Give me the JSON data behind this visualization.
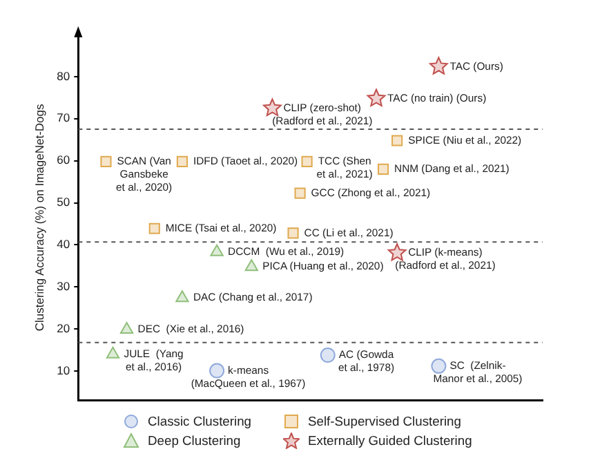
{
  "chart_data": {
    "type": "scatter",
    "ylabel": "Clustering Accuracy (%) on ImageNet-Dogs",
    "categories": [
      null,
      null,
      null,
      null,
      null,
      null,
      null,
      null,
      null,
      null,
      null,
      null,
      null,
      null,
      null,
      null,
      null,
      null,
      null,
      null,
      null,
      null,
      null,
      null,
      null,
      null,
      null,
      null,
      null,
      null,
      null,
      null,
      null,
      null,
      null,
      null,
      null,
      null,
      null,
      null,
      null,
      null,
      null,
      null,
      null,
      null,
      null,
      null,
      null,
      null,
      null,
      null,
      null,
      null,
      null,
      null,
      null,
      null,
      null,
      null,
      null,
      null,
      null,
      null,
      null,
      null,
      null,
      null
    ],
    "ylim": [
      3,
      90
    ],
    "yticks": [
      10,
      20,
      30,
      40,
      50,
      60,
      70,
      80
    ],
    "tick_labels": "y",
    "legend": "bottom",
    "series": [
      {
        "name": "Classic Clustering",
        "color": "#8fa9dc",
        "marker": "circle",
        "values": [
          null,
          null,
          null,
          null,
          null,
          null,
          null,
          null,
          null,
          null,
          null,
          null,
          null,
          null,
          null,
          null,
          null,
          null,
          null,
          null,
          10.1,
          null,
          null,
          null,
          null,
          null,
          null,
          null,
          null,
          null,
          null,
          null,
          null,
          null,
          null,
          null,
          13.8,
          null,
          null,
          null,
          null,
          null,
          null,
          null,
          null,
          null,
          null,
          null,
          null,
          null,
          null,
          null,
          11.2,
          null,
          null,
          null,
          null,
          null,
          null,
          null,
          null,
          null,
          null,
          null,
          null,
          null,
          null,
          null
        ]
      },
      {
        "name": "Self-Supervised Clustering",
        "color": "#e0a94f",
        "marker": "square",
        "values": [
          null,
          null,
          null,
          null,
          59.8,
          null,
          null,
          null,
          null,
          null,
          null,
          43.9,
          null,
          null,
          null,
          59.8,
          null,
          null,
          null,
          null,
          null,
          null,
          null,
          null,
          null,
          null,
          null,
          null,
          null,
          null,
          null,
          42.8,
          52.3,
          59.8,
          null,
          null,
          null,
          null,
          null,
          null,
          null,
          null,
          null,
          null,
          58.0,
          null,
          64.8,
          null,
          null,
          null,
          null,
          null,
          null,
          null,
          null,
          null,
          null,
          null,
          null,
          null,
          null,
          null,
          null,
          null,
          null,
          null,
          null,
          null
        ]
      },
      {
        "name": "Deep Clustering",
        "color": "#8fbf7a",
        "marker": "triangle",
        "values": [
          null,
          null,
          null,
          null,
          null,
          14.0,
          null,
          19.9,
          null,
          null,
          null,
          null,
          null,
          null,
          null,
          27.4,
          null,
          null,
          null,
          null,
          38.3,
          null,
          null,
          null,
          null,
          34.8,
          null,
          null,
          null,
          null,
          null,
          null,
          null,
          null,
          null,
          null,
          null,
          null,
          null,
          null,
          null,
          null,
          null,
          null,
          null,
          null,
          null,
          null,
          null,
          null,
          null,
          null,
          null,
          null,
          null,
          null,
          null,
          null,
          null,
          null,
          null,
          null,
          null,
          null,
          null,
          null,
          null,
          null
        ]
      },
      {
        "name": "Externally Guided Clustering",
        "color": "#c0504d",
        "marker": "star",
        "values": [
          null,
          null,
          null,
          null,
          null,
          null,
          null,
          null,
          null,
          null,
          null,
          null,
          null,
          null,
          null,
          null,
          null,
          null,
          null,
          null,
          null,
          null,
          null,
          null,
          null,
          null,
          null,
          null,
          72.5,
          null,
          null,
          null,
          null,
          null,
          null,
          null,
          null,
          null,
          null,
          null,
          null,
          null,
          null,
          74.8,
          null,
          null,
          38.1,
          null,
          null,
          null,
          null,
          null,
          82.4,
          null,
          null,
          null,
          null,
          null,
          null,
          null,
          null,
          null,
          null,
          null,
          null,
          null,
          null,
          null
        ]
      }
    ],
    "ref_lines": [
      {
        "axis": "y",
        "value": 67.5,
        "color": "#555555",
        "line_style": "dashed"
      },
      {
        "axis": "y",
        "value": 40.7,
        "color": "#555555",
        "line_style": "dashed"
      },
      {
        "axis": "y",
        "value": 16.8,
        "color": "#555555",
        "line_style": "dashed"
      }
    ],
    "annotations": [
      "k-means\n(MacQueen et al., 1967)",
      "AC (Gowda\net al., 1978)",
      "SC  (Zelnik-\nManor et al., 2005)",
      "SCAN (Van\nGansbeke\net al., 2020)",
      "MICE (Tsai et al., 2020)",
      "IDFD (Taoet al., 2020)",
      "CC (Li et al., 2021)",
      "GCC (Zhong et al., 2021)",
      "TCC (Shen\net al., 2021)",
      "NNM (Dang et al., 2021)",
      "SPICE (Niu et al., 2022)",
      "JULE  (Yang\net al., 2016)",
      "DEC  (Xie et al., 2016)",
      "DAC (Chang et al., 2017)",
      "DCCM  (Wu et al., 2019)",
      "PICA (Huang et al., 2020)",
      "CLIP (zero-shot)\n(Radford et al., 2021)",
      "TAC (no train) (Ours)",
      "CLIP (k-means)\n(Radford et al., 2021)",
      "TAC (Ours)"
    ]
  }
}
